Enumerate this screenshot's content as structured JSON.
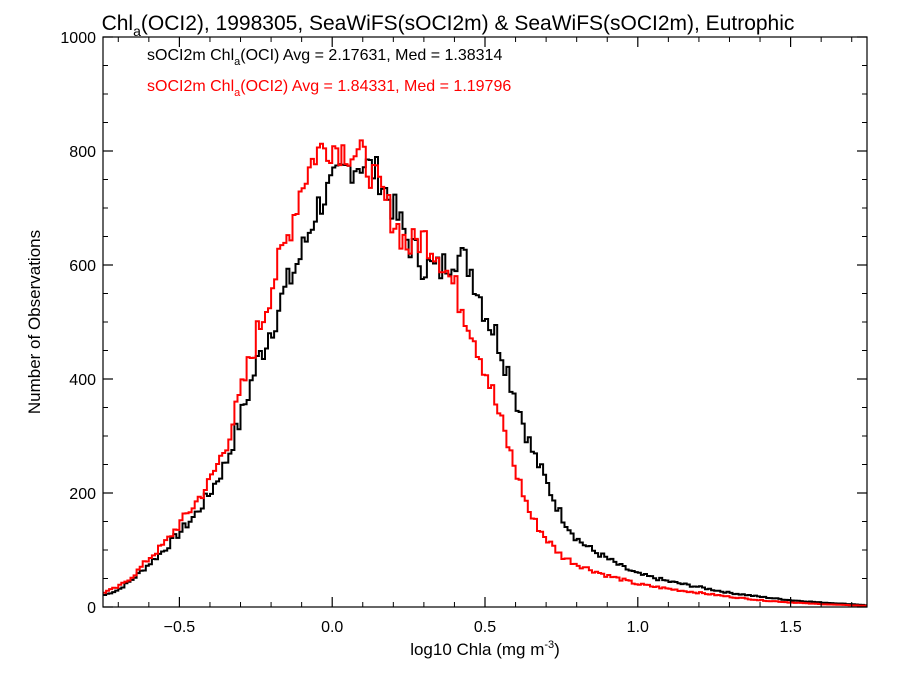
{
  "chart_data": {
    "type": "line",
    "title": {
      "prefix": "Chl",
      "sub": "a",
      "suffix": "(OCI2), 1998305, SeaWiFS(sOCI2m) & SeaWiFS(sOCI2m), Eutrophic"
    },
    "xlabel": {
      "prefix": "log10 Chla (mg m",
      "sup": "-3",
      "suffix": ")"
    },
    "ylabel": "Number of Observations",
    "xlim": [
      -0.75,
      1.75
    ],
    "ylim": [
      0,
      1000
    ],
    "x_ticks": [
      -0.5,
      0.0,
      0.5,
      1.0,
      1.5
    ],
    "x_tick_labels": [
      "−0.5",
      "0.0",
      "0.5",
      "1.0",
      "1.5"
    ],
    "y_ticks": [
      0,
      200,
      400,
      600,
      800,
      1000
    ],
    "y_tick_labels": [
      "0",
      "200",
      "400",
      "600",
      "800",
      "1000"
    ],
    "grid": false,
    "legend_position": "top-left",
    "series": [
      {
        "name": {
          "prefix": "sOCI2m Chl",
          "sub": "a",
          "suffix": "(OCI) Avg = 2.17631, Med = 1.38314"
        },
        "color": "#000000",
        "points": [
          [
            -0.75,
            20
          ],
          [
            -0.7,
            30
          ],
          [
            -0.65,
            50
          ],
          [
            -0.6,
            75
          ],
          [
            -0.55,
            100
          ],
          [
            -0.5,
            130
          ],
          [
            -0.45,
            160
          ],
          [
            -0.4,
            200
          ],
          [
            -0.35,
            250
          ],
          [
            -0.3,
            330
          ],
          [
            -0.25,
            420
          ],
          [
            -0.2,
            490
          ],
          [
            -0.15,
            560
          ],
          [
            -0.1,
            620
          ],
          [
            -0.05,
            700
          ],
          [
            0.0,
            740
          ],
          [
            0.05,
            770
          ],
          [
            0.1,
            780
          ],
          [
            0.15,
            760
          ],
          [
            0.2,
            700
          ],
          [
            0.25,
            640
          ],
          [
            0.3,
            600
          ],
          [
            0.35,
            590
          ],
          [
            0.4,
            620
          ],
          [
            0.45,
            600
          ],
          [
            0.5,
            520
          ],
          [
            0.55,
            460
          ],
          [
            0.6,
            370
          ],
          [
            0.65,
            280
          ],
          [
            0.7,
            220
          ],
          [
            0.75,
            160
          ],
          [
            0.8,
            120
          ],
          [
            0.85,
            100
          ],
          [
            0.9,
            85
          ],
          [
            0.95,
            70
          ],
          [
            1.0,
            58
          ],
          [
            1.1,
            45
          ],
          [
            1.2,
            35
          ],
          [
            1.3,
            25
          ],
          [
            1.4,
            18
          ],
          [
            1.5,
            12
          ],
          [
            1.6,
            8
          ],
          [
            1.7,
            5
          ],
          [
            1.75,
            3
          ]
        ]
      },
      {
        "name": {
          "prefix": "sOCI2m Chl",
          "sub": "a",
          "suffix": "(OCI2) Avg = 1.84331, Med = 1.19796"
        },
        "color": "#ff0000",
        "points": [
          [
            -0.75,
            25
          ],
          [
            -0.7,
            35
          ],
          [
            -0.65,
            55
          ],
          [
            -0.6,
            85
          ],
          [
            -0.55,
            110
          ],
          [
            -0.5,
            145
          ],
          [
            -0.45,
            180
          ],
          [
            -0.4,
            220
          ],
          [
            -0.35,
            280
          ],
          [
            -0.3,
            370
          ],
          [
            -0.25,
            470
          ],
          [
            -0.2,
            560
          ],
          [
            -0.15,
            640
          ],
          [
            -0.1,
            740
          ],
          [
            -0.05,
            800
          ],
          [
            0.0,
            810
          ],
          [
            0.05,
            800
          ],
          [
            0.1,
            790
          ],
          [
            0.15,
            740
          ],
          [
            0.2,
            680
          ],
          [
            0.25,
            630
          ],
          [
            0.3,
            650
          ],
          [
            0.35,
            620
          ],
          [
            0.4,
            560
          ],
          [
            0.45,
            500
          ],
          [
            0.5,
            420
          ],
          [
            0.55,
            330
          ],
          [
            0.6,
            240
          ],
          [
            0.65,
            160
          ],
          [
            0.7,
            120
          ],
          [
            0.75,
            90
          ],
          [
            0.8,
            75
          ],
          [
            0.85,
            65
          ],
          [
            0.9,
            55
          ],
          [
            0.95,
            48
          ],
          [
            1.0,
            40
          ],
          [
            1.1,
            32
          ],
          [
            1.2,
            25
          ],
          [
            1.3,
            18
          ],
          [
            1.4,
            12
          ],
          [
            1.5,
            8
          ],
          [
            1.6,
            5
          ],
          [
            1.7,
            3
          ],
          [
            1.75,
            2
          ]
        ]
      }
    ]
  }
}
